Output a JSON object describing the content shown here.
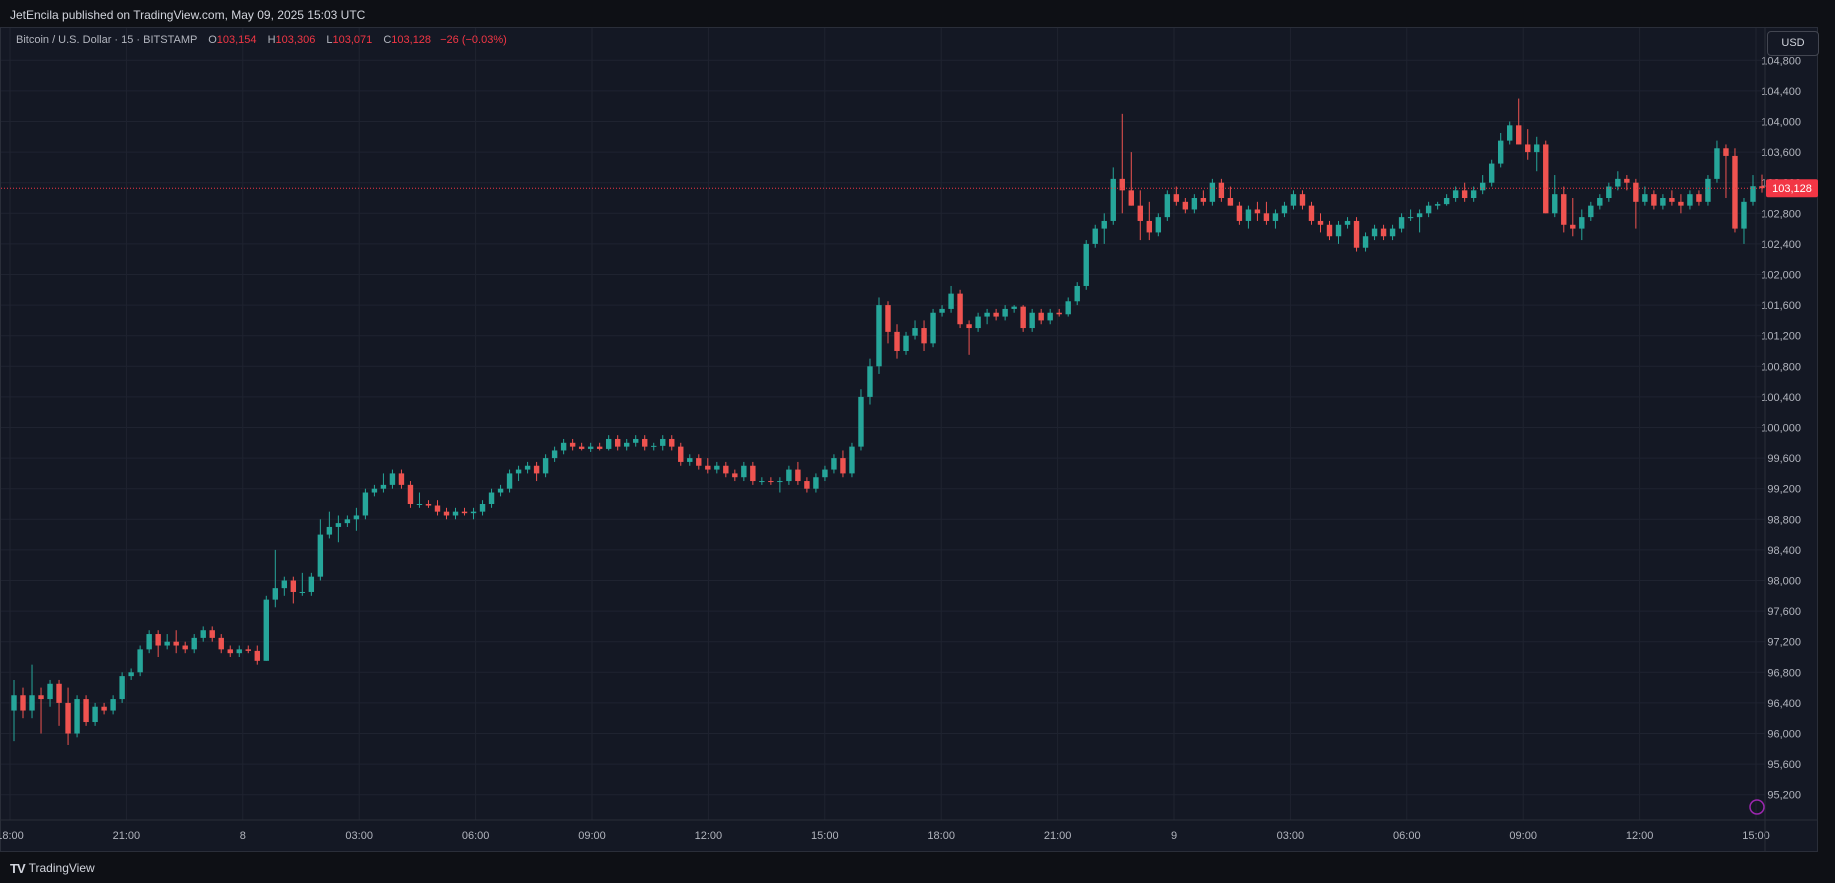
{
  "header": {
    "published_text": "JetEncila published on TradingView.com, May 09, 2025 15:03 UTC"
  },
  "legend": {
    "symbol": "Bitcoin / U.S. Dollar · 15 · BITSTAMP",
    "open_label": "O",
    "open_value": "103,154",
    "high_label": "H",
    "high_value": "103,306",
    "low_label": "L",
    "low_value": "103,071",
    "close_label": "C",
    "close_value": "103,128",
    "change": "−26 (−0.03%)"
  },
  "currency_button": "USD",
  "footer": {
    "logo_glyph": "TV",
    "brand": "TradingView"
  },
  "colors": {
    "up": "#26a69a",
    "down": "#ef5350",
    "background": "#141824",
    "grid": "#1f2330",
    "price_label": "#f23645"
  },
  "chart_data": {
    "type": "candlestick",
    "y_axis": {
      "min": 95000,
      "max": 105000,
      "ticks": [
        104800,
        104400,
        104000,
        103600,
        103200,
        102800,
        102400,
        102000,
        101600,
        101200,
        100800,
        100400,
        100000,
        99600,
        99200,
        98800,
        98400,
        98000,
        97600,
        97200,
        96800,
        96400,
        96000,
        95600,
        95200
      ],
      "tick_labels": [
        "104,800",
        "104,400",
        "104,000",
        "103,600",
        "103,200",
        "102,800",
        "102,400",
        "102,000",
        "101,600",
        "101,200",
        "100,800",
        "100,400",
        "100,000",
        "99,600",
        "99,200",
        "98,800",
        "98,400",
        "98,000",
        "97,600",
        "97,200",
        "96,800",
        "96,400",
        "96,000",
        "95,600",
        "95,200"
      ]
    },
    "x_axis": {
      "tick_labels": [
        "18:00",
        "21:00",
        "8",
        "03:00",
        "06:00",
        "09:00",
        "12:00",
        "15:00",
        "18:00",
        "21:00",
        "9",
        "03:00",
        "06:00",
        "09:00",
        "12:00",
        "15:00"
      ]
    },
    "last_price": 103128,
    "last_price_label": "103,128",
    "candles": [
      [
        96300,
        96700,
        95900,
        96500
      ],
      [
        96500,
        96600,
        96200,
        96300
      ],
      [
        96300,
        96900,
        96200,
        96500
      ],
      [
        96500,
        96600,
        96000,
        96450
      ],
      [
        96450,
        96700,
        96350,
        96650
      ],
      [
        96650,
        96700,
        96100,
        96400
      ],
      [
        96400,
        96600,
        95850,
        96000
      ],
      [
        96000,
        96500,
        95950,
        96450
      ],
      [
        96450,
        96500,
        96100,
        96150
      ],
      [
        96150,
        96400,
        96100,
        96350
      ],
      [
        96350,
        96400,
        96250,
        96300
      ],
      [
        96300,
        96500,
        96250,
        96450
      ],
      [
        96450,
        96800,
        96400,
        96750
      ],
      [
        96750,
        96850,
        96700,
        96800
      ],
      [
        96800,
        97150,
        96750,
        97100
      ],
      [
        97100,
        97350,
        97050,
        97300
      ],
      [
        97300,
        97350,
        97000,
        97150
      ],
      [
        97150,
        97300,
        97100,
        97200
      ],
      [
        97200,
        97350,
        97050,
        97150
      ],
      [
        97150,
        97200,
        97050,
        97100
      ],
      [
        97100,
        97300,
        97050,
        97250
      ],
      [
        97250,
        97400,
        97200,
        97350
      ],
      [
        97350,
        97400,
        97200,
        97250
      ],
      [
        97250,
        97300,
        97050,
        97100
      ],
      [
        97100,
        97150,
        97000,
        97050
      ],
      [
        97050,
        97150,
        97000,
        97100
      ],
      [
        97100,
        97150,
        97050,
        97080
      ],
      [
        97080,
        97150,
        96900,
        96950
      ],
      [
        96950,
        97800,
        96950,
        97750
      ],
      [
        97750,
        98400,
        97650,
        97900
      ],
      [
        97900,
        98050,
        97800,
        98000
      ],
      [
        98000,
        98050,
        97700,
        97850
      ],
      [
        97850,
        98100,
        97800,
        97850
      ],
      [
        97850,
        98100,
        97800,
        98050
      ],
      [
        98050,
        98800,
        98000,
        98600
      ],
      [
        98600,
        98900,
        98550,
        98700
      ],
      [
        98700,
        98850,
        98500,
        98750
      ],
      [
        98750,
        98850,
        98700,
        98800
      ],
      [
        98800,
        98950,
        98650,
        98850
      ],
      [
        98850,
        99200,
        98800,
        99150
      ],
      [
        99150,
        99250,
        99100,
        99200
      ],
      [
        99200,
        99400,
        99150,
        99250
      ],
      [
        99250,
        99450,
        99200,
        99400
      ],
      [
        99400,
        99450,
        99200,
        99250
      ],
      [
        99250,
        99300,
        98950,
        99000
      ],
      [
        99000,
        99150,
        98950,
        99000
      ],
      [
        99000,
        99050,
        98950,
        98980
      ],
      [
        98980,
        99050,
        98850,
        98900
      ],
      [
        98900,
        98950,
        98800,
        98850
      ],
      [
        98850,
        98950,
        98800,
        98900
      ],
      [
        98900,
        98950,
        98850,
        98880
      ],
      [
        98880,
        98950,
        98800,
        98900
      ],
      [
        98900,
        99050,
        98850,
        99000
      ],
      [
        99000,
        99200,
        98950,
        99150
      ],
      [
        99150,
        99250,
        99100,
        99200
      ],
      [
        99200,
        99450,
        99150,
        99400
      ],
      [
        99400,
        99500,
        99300,
        99450
      ],
      [
        99450,
        99550,
        99400,
        99500
      ],
      [
        99500,
        99550,
        99300,
        99400
      ],
      [
        99400,
        99650,
        99350,
        99600
      ],
      [
        99600,
        99750,
        99550,
        99700
      ],
      [
        99700,
        99850,
        99650,
        99800
      ],
      [
        99800,
        99850,
        99700,
        99750
      ],
      [
        99750,
        99800,
        99700,
        99720
      ],
      [
        99720,
        99800,
        99680,
        99750
      ],
      [
        99750,
        99800,
        99700,
        99720
      ],
      [
        99720,
        99900,
        99700,
        99850
      ],
      [
        99850,
        99900,
        99700,
        99750
      ],
      [
        99750,
        99850,
        99700,
        99800
      ],
      [
        99800,
        99900,
        99750,
        99850
      ],
      [
        99850,
        99900,
        99700,
        99750
      ],
      [
        99750,
        99800,
        99700,
        99760
      ],
      [
        99760,
        99900,
        99700,
        99850
      ],
      [
        99850,
        99900,
        99700,
        99750
      ],
      [
        99750,
        99800,
        99500,
        99550
      ],
      [
        99550,
        99650,
        99500,
        99600
      ],
      [
        99600,
        99650,
        99450,
        99500
      ],
      [
        99500,
        99600,
        99400,
        99450
      ],
      [
        99450,
        99550,
        99400,
        99500
      ],
      [
        99500,
        99550,
        99350,
        99400
      ],
      [
        99400,
        99450,
        99300,
        99350
      ],
      [
        99350,
        99550,
        99300,
        99500
      ],
      [
        99500,
        99550,
        99250,
        99300
      ],
      [
        99300,
        99350,
        99250,
        99300
      ],
      [
        99300,
        99350,
        99250,
        99290
      ],
      [
        99290,
        99350,
        99150,
        99300
      ],
      [
        99300,
        99500,
        99250,
        99450
      ],
      [
        99450,
        99550,
        99250,
        99300
      ],
      [
        99300,
        99350,
        99150,
        99200
      ],
      [
        99200,
        99400,
        99150,
        99350
      ],
      [
        99350,
        99500,
        99300,
        99450
      ],
      [
        99450,
        99650,
        99400,
        99600
      ],
      [
        99600,
        99700,
        99350,
        99400
      ],
      [
        99400,
        99800,
        99350,
        99750
      ],
      [
        99750,
        100500,
        99700,
        100400
      ],
      [
        100400,
        100900,
        100300,
        100800
      ],
      [
        100800,
        101700,
        100700,
        101600
      ],
      [
        101600,
        101650,
        101100,
        101250
      ],
      [
        101250,
        101350,
        100900,
        101000
      ],
      [
        101000,
        101250,
        100950,
        101200
      ],
      [
        101200,
        101400,
        101150,
        101300
      ],
      [
        101300,
        101400,
        101000,
        101100
      ],
      [
        101100,
        101550,
        101050,
        101500
      ],
      [
        101500,
        101600,
        101450,
        101550
      ],
      [
        101550,
        101850,
        101500,
        101750
      ],
      [
        101750,
        101800,
        101300,
        101350
      ],
      [
        101350,
        101400,
        100950,
        101300
      ],
      [
        101300,
        101500,
        101250,
        101450
      ],
      [
        101450,
        101550,
        101350,
        101500
      ],
      [
        101500,
        101550,
        101400,
        101450
      ],
      [
        101450,
        101600,
        101400,
        101550
      ],
      [
        101550,
        101600,
        101500,
        101580
      ],
      [
        101580,
        101600,
        101250,
        101300
      ],
      [
        101300,
        101550,
        101250,
        101500
      ],
      [
        101500,
        101550,
        101350,
        101400
      ],
      [
        101400,
        101550,
        101350,
        101500
      ],
      [
        101500,
        101550,
        101450,
        101480
      ],
      [
        101480,
        101700,
        101450,
        101650
      ],
      [
        101650,
        101900,
        101600,
        101850
      ],
      [
        101850,
        102450,
        101800,
        102400
      ],
      [
        102400,
        102650,
        102350,
        102600
      ],
      [
        102600,
        102800,
        102400,
        102700
      ],
      [
        102700,
        103400,
        102650,
        103250
      ],
      [
        103250,
        104100,
        102800,
        103100
      ],
      [
        103100,
        103600,
        102900,
        102900
      ],
      [
        102900,
        103100,
        102450,
        102700
      ],
      [
        102700,
        102950,
        102450,
        102550
      ],
      [
        102550,
        102800,
        102500,
        102750
      ],
      [
        102750,
        103100,
        102700,
        103050
      ],
      [
        103050,
        103150,
        102900,
        102950
      ],
      [
        102950,
        103000,
        102800,
        102850
      ],
      [
        102850,
        103050,
        102800,
        103000
      ],
      [
        103000,
        103100,
        102900,
        102950
      ],
      [
        102950,
        103250,
        102900,
        103200
      ],
      [
        103200,
        103250,
        102950,
        103000
      ],
      [
        103000,
        103150,
        102900,
        102900
      ],
      [
        102900,
        102950,
        102650,
        102700
      ],
      [
        102700,
        102900,
        102600,
        102850
      ],
      [
        102850,
        102950,
        102700,
        102800
      ],
      [
        102800,
        102950,
        102650,
        102700
      ],
      [
        102700,
        102850,
        102600,
        102800
      ],
      [
        102800,
        102950,
        102750,
        102900
      ],
      [
        102900,
        103100,
        102850,
        103050
      ],
      [
        103050,
        103100,
        102850,
        102900
      ],
      [
        102900,
        102950,
        102650,
        102700
      ],
      [
        102700,
        102800,
        102550,
        102650
      ],
      [
        102650,
        102700,
        102450,
        102500
      ],
      [
        102500,
        102700,
        102400,
        102650
      ],
      [
        102650,
        102750,
        102600,
        102700
      ],
      [
        102700,
        102750,
        102300,
        102350
      ],
      [
        102350,
        102550,
        102300,
        102500
      ],
      [
        102500,
        102650,
        102450,
        102600
      ],
      [
        102600,
        102650,
        102450,
        102500
      ],
      [
        102500,
        102650,
        102450,
        102600
      ],
      [
        102600,
        102800,
        102550,
        102750
      ],
      [
        102750,
        102850,
        102700,
        102750
      ],
      [
        102750,
        102850,
        102550,
        102800
      ],
      [
        102800,
        102950,
        102750,
        102900
      ],
      [
        102900,
        102950,
        102850,
        102920
      ],
      [
        102920,
        103050,
        102900,
        103000
      ],
      [
        103000,
        103150,
        102950,
        103100
      ],
      [
        103100,
        103200,
        102950,
        103000
      ],
      [
        103000,
        103150,
        102950,
        103100
      ],
      [
        103100,
        103300,
        103050,
        103200
      ],
      [
        103200,
        103500,
        103150,
        103450
      ],
      [
        103450,
        103850,
        103400,
        103750
      ],
      [
        103750,
        104000,
        103700,
        103950
      ],
      [
        103950,
        104300,
        103700,
        103700
      ],
      [
        103700,
        103900,
        103500,
        103600
      ],
      [
        103600,
        103800,
        103350,
        103700
      ],
      [
        103700,
        103750,
        102800,
        102800
      ],
      [
        102800,
        103300,
        102750,
        103050
      ],
      [
        103050,
        103150,
        102550,
        102650
      ],
      [
        102650,
        103000,
        102500,
        102600
      ],
      [
        102600,
        102850,
        102450,
        102750
      ],
      [
        102750,
        102950,
        102700,
        102900
      ],
      [
        102900,
        103050,
        102850,
        103000
      ],
      [
        103000,
        103200,
        102950,
        103150
      ],
      [
        103150,
        103350,
        103100,
        103250
      ],
      [
        103250,
        103300,
        103100,
        103200
      ],
      [
        103200,
        103250,
        102600,
        102950
      ],
      [
        102950,
        103150,
        102900,
        103050
      ],
      [
        103050,
        103100,
        102850,
        102900
      ],
      [
        102900,
        103050,
        102850,
        103000
      ],
      [
        103000,
        103100,
        102900,
        102950
      ],
      [
        102950,
        103050,
        102800,
        102900
      ],
      [
        102900,
        103100,
        102850,
        103050
      ],
      [
        103050,
        103100,
        102900,
        102950
      ],
      [
        102950,
        103300,
        102900,
        103250
      ],
      [
        103250,
        103750,
        103200,
        103650
      ],
      [
        103650,
        103700,
        103000,
        103550
      ],
      [
        103550,
        103650,
        102550,
        102600
      ],
      [
        102600,
        103000,
        102400,
        102950
      ],
      [
        102950,
        103300,
        102900,
        103154
      ],
      [
        103154,
        103306,
        103071,
        103128
      ]
    ]
  }
}
